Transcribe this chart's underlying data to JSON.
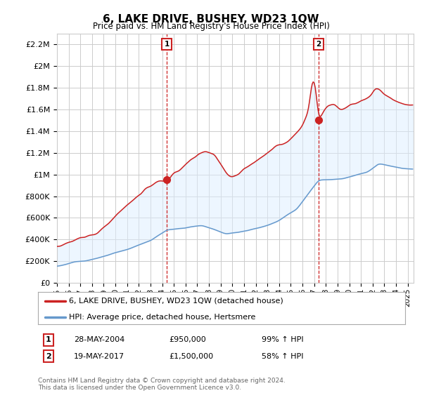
{
  "title": "6, LAKE DRIVE, BUSHEY, WD23 1QW",
  "subtitle": "Price paid vs. HM Land Registry's House Price Index (HPI)",
  "ylabel_vals": [
    "£0",
    "£200K",
    "£400K",
    "£600K",
    "£800K",
    "£1M",
    "£1.2M",
    "£1.4M",
    "£1.6M",
    "£1.8M",
    "£2M",
    "£2.2M"
  ],
  "yticks": [
    0,
    200000,
    400000,
    600000,
    800000,
    1000000,
    1200000,
    1400000,
    1600000,
    1800000,
    2000000,
    2200000
  ],
  "ylim": [
    0,
    2300000
  ],
  "xlim_start": 1995.0,
  "xlim_end": 2025.5,
  "sale1_x": 2004.39,
  "sale1_y": 950000,
  "sale1_label": "1",
  "sale1_date": "28-MAY-2004",
  "sale1_price": "£950,000",
  "sale1_pct": "99% ↑ HPI",
  "sale2_x": 2017.38,
  "sale2_y": 1500000,
  "sale2_label": "2",
  "sale2_date": "19-MAY-2017",
  "sale2_price": "£1,500,000",
  "sale2_pct": "58% ↑ HPI",
  "legend_line1": "6, LAKE DRIVE, BUSHEY, WD23 1QW (detached house)",
  "legend_line2": "HPI: Average price, detached house, Hertsmere",
  "footer": "Contains HM Land Registry data © Crown copyright and database right 2024.\nThis data is licensed under the Open Government Licence v3.0.",
  "line_color_red": "#cc2222",
  "line_color_blue": "#6699cc",
  "fill_color": "#ddeeff",
  "vline_color": "#cc2222",
  "grid_color": "#cccccc",
  "background_color": "#ffffff"
}
